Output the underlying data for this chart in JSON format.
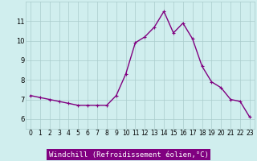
{
  "x": [
    0,
    1,
    2,
    3,
    4,
    5,
    6,
    7,
    8,
    9,
    10,
    11,
    12,
    13,
    14,
    15,
    16,
    17,
    18,
    19,
    20,
    21,
    22,
    23
  ],
  "y": [
    7.2,
    7.1,
    7.0,
    6.9,
    6.8,
    6.7,
    6.7,
    6.7,
    6.7,
    7.2,
    8.3,
    9.9,
    10.2,
    10.7,
    11.5,
    10.4,
    10.9,
    10.1,
    8.7,
    7.9,
    7.6,
    7.0,
    6.9,
    6.1
  ],
  "line_color": "#800080",
  "marker": "+",
  "marker_size": 3,
  "xlabel": "Windchill (Refroidissement éolien,°C)",
  "xlim": [
    -0.5,
    23.5
  ],
  "ylim": [
    5.5,
    12.0
  ],
  "yticks": [
    6,
    7,
    8,
    9,
    10,
    11
  ],
  "xticks": [
    0,
    1,
    2,
    3,
    4,
    5,
    6,
    7,
    8,
    9,
    10,
    11,
    12,
    13,
    14,
    15,
    16,
    17,
    18,
    19,
    20,
    21,
    22,
    23
  ],
  "grid_color": "#aacccc",
  "bg_color": "#d0eeee",
  "xlabel_bg": "#800080",
  "xlabel_fontcolor": "#ffffff",
  "tick_labelsize": 5.5,
  "xlabel_fontsize": 6.5,
  "linewidth": 1.0
}
